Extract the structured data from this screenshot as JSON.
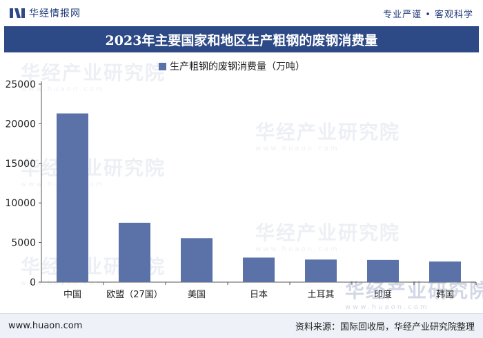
{
  "header": {
    "brand_name": "华经情报网",
    "slogan": "专业严谨 • 客观科学"
  },
  "title": "2023年主要国家和地区生产粗钢的废钢消费量",
  "watermark": {
    "text": "华经产业研究院",
    "url": "www.huaon.com"
  },
  "footer": {
    "site": "www.huaon.com",
    "source": "资料来源：国际回收局，华经产业研究院整理"
  },
  "colors": {
    "bar": "#5a72a8",
    "title_bg": "#2e4a86"
  },
  "chart_data": {
    "type": "bar",
    "categories": [
      "中国",
      "欧盟（27国）",
      "美国",
      "日本",
      "土耳其",
      "印度",
      "韩国"
    ],
    "series": [
      {
        "name": "生产粗钢的废钢消费量（万吨）",
        "values": [
          21300,
          7500,
          5550,
          3100,
          2850,
          2800,
          2600
        ]
      }
    ],
    "ylim": [
      0,
      25000
    ],
    "yticks": [
      0,
      5000,
      10000,
      15000,
      20000,
      25000
    ],
    "legend": "top-center",
    "grid": false
  }
}
